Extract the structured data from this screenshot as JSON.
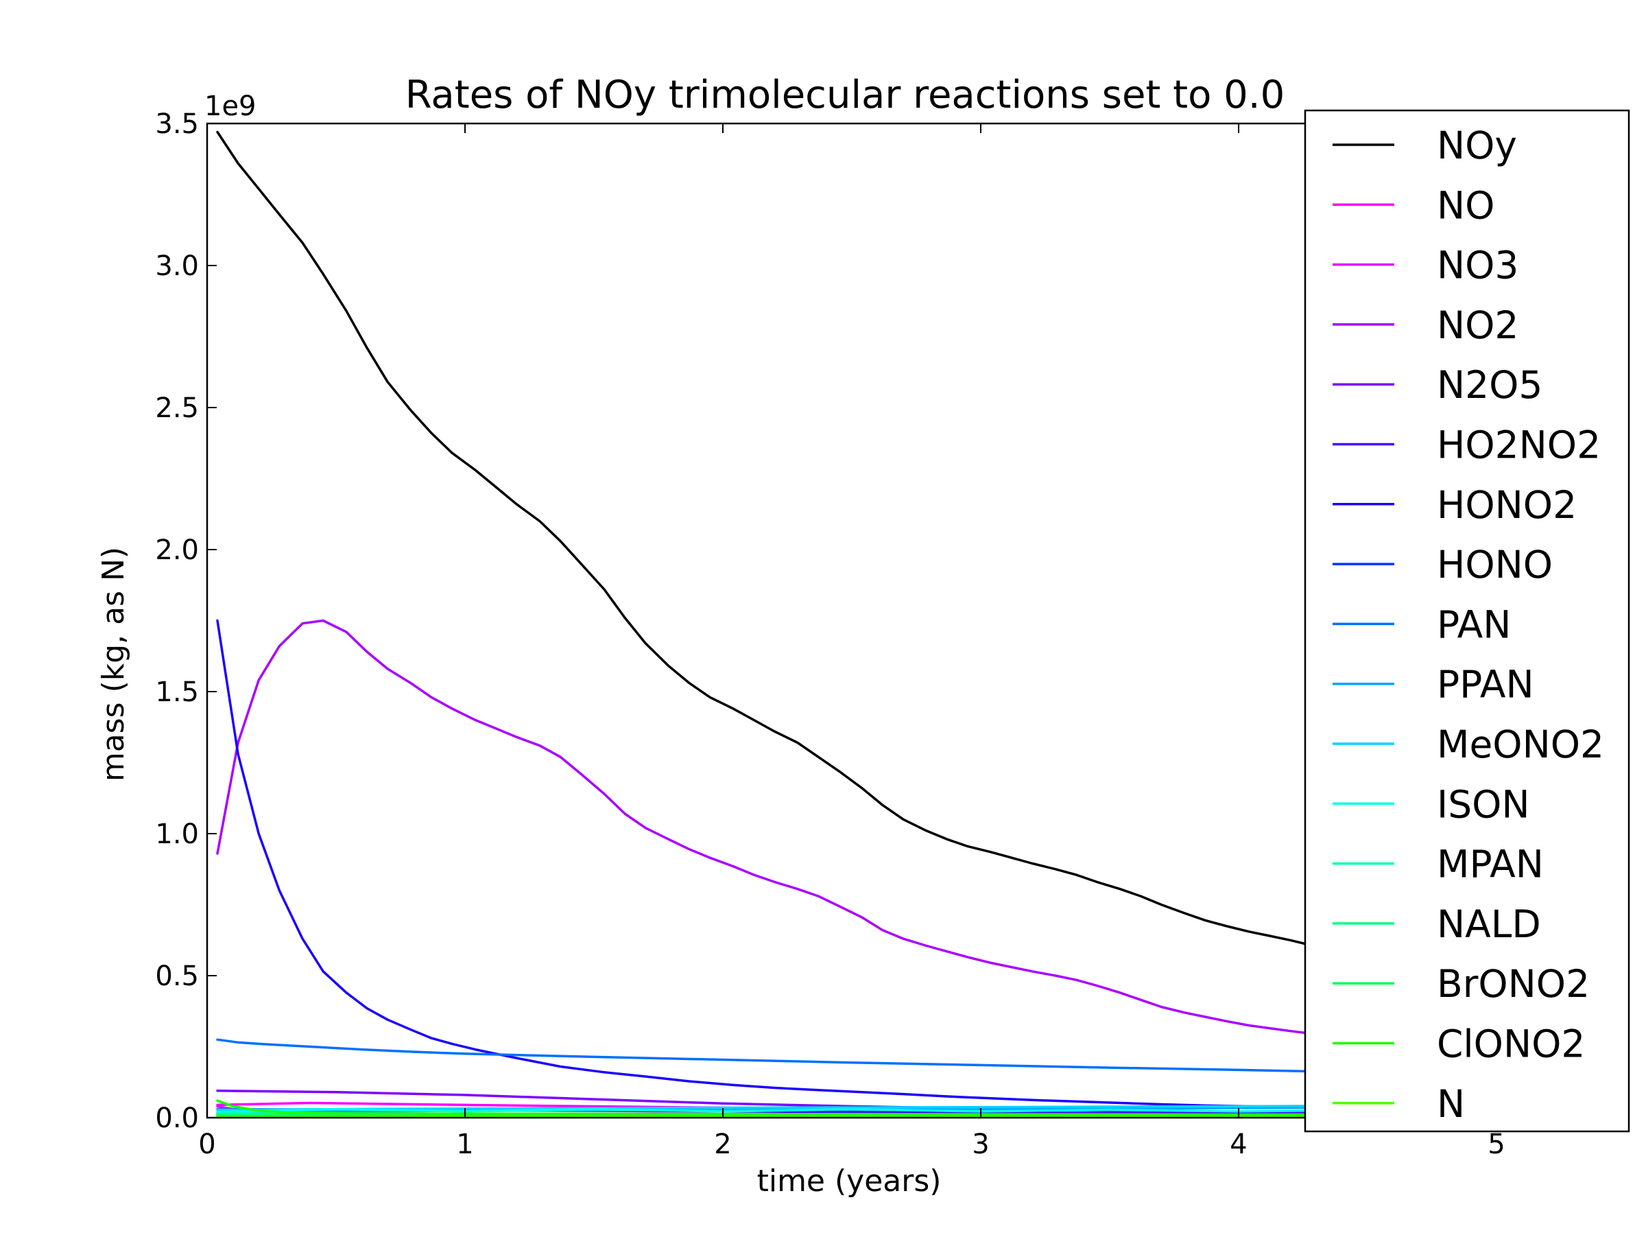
{
  "chart_data": {
    "type": "line",
    "title": "Rates of NOy trimolecular reactions set to 0.0",
    "xlabel": "time (years)",
    "ylabel": "mass (kg, as N)",
    "y_offset_label": "1e9",
    "xlim": [
      0,
      5.5
    ],
    "ylim": [
      0,
      3.5
    ],
    "x_ticks": [
      0,
      1,
      2,
      3,
      4,
      5
    ],
    "x_tick_labels": [
      "0",
      "1",
      "2",
      "3",
      "4",
      "5"
    ],
    "y_ticks": [
      0.0,
      0.5,
      1.0,
      1.5,
      2.0,
      2.5,
      3.0,
      3.5
    ],
    "y_tick_labels": [
      "0.0",
      "0.5",
      "1.0",
      "1.5",
      "2.0",
      "2.5",
      "3.0",
      "3.5"
    ],
    "grid": false,
    "legend_position": "right",
    "series": [
      {
        "name": "NOy",
        "color": "#000000",
        "x": [
          0.04,
          0.12,
          0.2,
          0.28,
          0.37,
          0.45,
          0.54,
          0.62,
          0.7,
          0.79,
          0.87,
          0.95,
          1.04,
          1.12,
          1.2,
          1.29,
          1.37,
          1.45,
          1.54,
          1.62,
          1.7,
          1.79,
          1.87,
          1.95,
          2.04,
          2.12,
          2.2,
          2.29,
          2.37,
          2.45,
          2.54,
          2.62,
          2.7,
          2.79,
          2.87,
          2.95,
          3.04,
          3.12,
          3.2,
          3.29,
          3.37,
          3.45,
          3.54,
          3.62,
          3.7,
          3.79,
          3.87,
          3.95,
          4.04,
          4.12,
          4.2,
          4.29
        ],
        "y": [
          3.47,
          3.36,
          3.27,
          3.18,
          3.08,
          2.97,
          2.84,
          2.71,
          2.59,
          2.49,
          2.41,
          2.34,
          2.28,
          2.22,
          2.16,
          2.1,
          2.03,
          1.95,
          1.86,
          1.76,
          1.67,
          1.59,
          1.53,
          1.48,
          1.44,
          1.4,
          1.36,
          1.32,
          1.27,
          1.22,
          1.16,
          1.1,
          1.05,
          1.01,
          0.98,
          0.955,
          0.935,
          0.915,
          0.895,
          0.875,
          0.855,
          0.83,
          0.805,
          0.78,
          0.75,
          0.72,
          0.695,
          0.675,
          0.655,
          0.64,
          0.625,
          0.605
        ]
      },
      {
        "name": "NO",
        "color": "#ff00ff",
        "x": [
          0.04,
          0.4,
          1.0,
          2.0,
          3.0,
          4.0,
          4.29
        ],
        "y": [
          0.045,
          0.052,
          0.045,
          0.035,
          0.028,
          0.022,
          0.021
        ]
      },
      {
        "name": "NO3",
        "color": "#e600ff",
        "x": [
          0.04,
          0.1,
          0.2,
          0.5,
          1.0,
          2.0,
          3.0,
          4.29
        ],
        "y": [
          0.04,
          0.03,
          0.015,
          0.01,
          0.008,
          0.006,
          0.005,
          0.004
        ]
      },
      {
        "name": "NO2",
        "color": "#aa00ff",
        "x": [
          0.04,
          0.12,
          0.2,
          0.28,
          0.37,
          0.45,
          0.54,
          0.62,
          0.7,
          0.79,
          0.87,
          0.95,
          1.04,
          1.12,
          1.2,
          1.29,
          1.37,
          1.45,
          1.54,
          1.62,
          1.7,
          1.79,
          1.87,
          1.95,
          2.04,
          2.12,
          2.2,
          2.29,
          2.37,
          2.45,
          2.54,
          2.62,
          2.7,
          2.79,
          2.87,
          2.95,
          3.04,
          3.12,
          3.2,
          3.29,
          3.37,
          3.45,
          3.54,
          3.62,
          3.7,
          3.79,
          3.87,
          3.95,
          4.04,
          4.12,
          4.2,
          4.29
        ],
        "y": [
          0.93,
          1.32,
          1.54,
          1.66,
          1.74,
          1.75,
          1.71,
          1.64,
          1.58,
          1.53,
          1.48,
          1.44,
          1.4,
          1.37,
          1.34,
          1.31,
          1.27,
          1.21,
          1.14,
          1.07,
          1.02,
          0.98,
          0.945,
          0.915,
          0.885,
          0.855,
          0.83,
          0.805,
          0.78,
          0.745,
          0.705,
          0.66,
          0.63,
          0.605,
          0.585,
          0.565,
          0.545,
          0.53,
          0.515,
          0.5,
          0.485,
          0.465,
          0.44,
          0.415,
          0.39,
          0.37,
          0.355,
          0.34,
          0.325,
          0.315,
          0.305,
          0.295
        ]
      },
      {
        "name": "N2O5",
        "color": "#7f00ff",
        "x": [
          0.04,
          0.5,
          1.0,
          1.5,
          2.0,
          2.5,
          3.0,
          3.5,
          4.0,
          4.29
        ],
        "y": [
          0.095,
          0.09,
          0.08,
          0.065,
          0.05,
          0.04,
          0.032,
          0.025,
          0.02,
          0.018
        ]
      },
      {
        "name": "HO2NO2",
        "color": "#4a00ff",
        "x": [
          0.04,
          0.5,
          1.0,
          2.0,
          3.0,
          4.0,
          4.29
        ],
        "y": [
          0.03,
          0.028,
          0.026,
          0.022,
          0.018,
          0.015,
          0.014
        ]
      },
      {
        "name": "HONO2",
        "color": "#1a00ff",
        "x": [
          0.04,
          0.12,
          0.2,
          0.28,
          0.37,
          0.45,
          0.54,
          0.62,
          0.7,
          0.79,
          0.87,
          0.95,
          1.04,
          1.2,
          1.37,
          1.54,
          1.7,
          1.87,
          2.04,
          2.2,
          2.37,
          2.54,
          2.7,
          2.87,
          3.04,
          3.2,
          3.37,
          3.54,
          3.7,
          3.87,
          4.04,
          4.2,
          4.29
        ],
        "y": [
          1.75,
          1.28,
          1.0,
          0.8,
          0.63,
          0.515,
          0.44,
          0.385,
          0.345,
          0.31,
          0.28,
          0.26,
          0.24,
          0.21,
          0.18,
          0.16,
          0.145,
          0.128,
          0.115,
          0.105,
          0.097,
          0.09,
          0.083,
          0.075,
          0.068,
          0.062,
          0.057,
          0.052,
          0.047,
          0.043,
          0.04,
          0.037,
          0.035
        ]
      },
      {
        "name": "HONO",
        "color": "#0033ff",
        "x": [
          0.04,
          0.5,
          1.0,
          2.0,
          3.0,
          4.0,
          4.29
        ],
        "y": [
          0.012,
          0.012,
          0.011,
          0.01,
          0.009,
          0.008,
          0.008
        ]
      },
      {
        "name": "PAN",
        "color": "#0070ff",
        "x": [
          0.04,
          0.12,
          0.2,
          0.4,
          0.6,
          0.8,
          1.0,
          1.5,
          2.0,
          2.5,
          3.0,
          3.5,
          4.0,
          4.29
        ],
        "y": [
          0.275,
          0.265,
          0.26,
          0.25,
          0.24,
          0.232,
          0.225,
          0.214,
          0.204,
          0.194,
          0.185,
          0.176,
          0.168,
          0.163
        ]
      },
      {
        "name": "PPAN",
        "color": "#00a2ff",
        "x": [
          0.04,
          0.5,
          1.0,
          2.0,
          3.0,
          4.0,
          4.29
        ],
        "y": [
          0.02,
          0.022,
          0.024,
          0.027,
          0.03,
          0.034,
          0.035
        ]
      },
      {
        "name": "MeONO2",
        "color": "#00d4ff",
        "x": [
          0.04,
          0.5,
          1.0,
          2.0,
          3.0,
          4.0,
          4.29
        ],
        "y": [
          0.028,
          0.03,
          0.032,
          0.035,
          0.037,
          0.04,
          0.041
        ]
      },
      {
        "name": "ISON",
        "color": "#00ffe6",
        "x": [
          0.04,
          0.5,
          1.0,
          1.5,
          2.0,
          2.5,
          3.0,
          3.5,
          4.0,
          4.29
        ],
        "y": [
          0.02,
          0.03,
          0.022,
          0.03,
          0.022,
          0.03,
          0.022,
          0.028,
          0.022,
          0.025
        ]
      },
      {
        "name": "MPAN",
        "color": "#00ffb4",
        "x": [
          0.04,
          0.5,
          1.0,
          2.0,
          3.0,
          4.0,
          4.29
        ],
        "y": [
          0.015,
          0.014,
          0.013,
          0.012,
          0.011,
          0.01,
          0.01
        ]
      },
      {
        "name": "NALD",
        "color": "#00ff80",
        "x": [
          0.04,
          0.5,
          1.0,
          2.0,
          3.0,
          4.0,
          4.29
        ],
        "y": [
          0.01,
          0.011,
          0.011,
          0.011,
          0.01,
          0.01,
          0.01
        ]
      },
      {
        "name": "BrONO2",
        "color": "#00ff4d",
        "x": [
          0.04,
          0.5,
          1.0,
          2.0,
          3.0,
          4.0,
          4.29
        ],
        "y": [
          0.006,
          0.006,
          0.006,
          0.005,
          0.005,
          0.005,
          0.005
        ]
      },
      {
        "name": "ClONO2",
        "color": "#1aff00",
        "x": [
          0.04,
          0.1,
          0.2,
          0.3,
          0.5,
          1.0,
          2.0,
          3.0,
          4.0,
          4.29
        ],
        "y": [
          0.06,
          0.04,
          0.025,
          0.018,
          0.015,
          0.014,
          0.013,
          0.012,
          0.011,
          0.011
        ]
      },
      {
        "name": "N",
        "color": "#4dff00",
        "x": [
          0.04,
          1.0,
          2.0,
          3.0,
          4.0,
          4.29
        ],
        "y": [
          0.002,
          0.002,
          0.002,
          0.002,
          0.002,
          0.002
        ]
      }
    ]
  }
}
